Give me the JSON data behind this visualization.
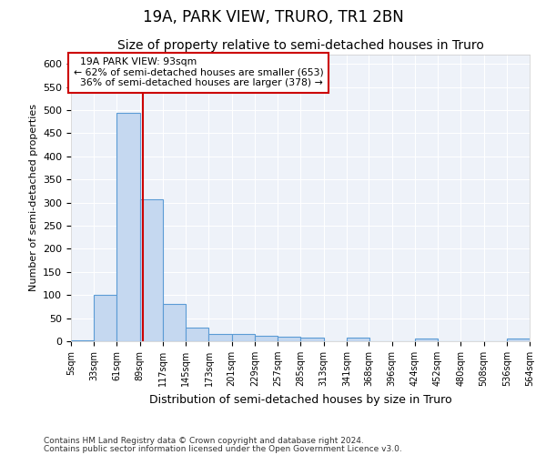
{
  "title": "19A, PARK VIEW, TRURO, TR1 2BN",
  "subtitle": "Size of property relative to semi-detached houses in Truro",
  "xlabel": "Distribution of semi-detached houses by size in Truro",
  "ylabel": "Number of semi-detached properties",
  "footnote1": "Contains HM Land Registry data © Crown copyright and database right 2024.",
  "footnote2": "Contains public sector information licensed under the Open Government Licence v3.0.",
  "property_size": 93,
  "property_label": "19A PARK VIEW: 93sqm",
  "pct_smaller": 62,
  "pct_larger": 36,
  "n_smaller": 653,
  "n_larger": 378,
  "bar_color": "#c5d8f0",
  "bar_edge_color": "#5b9bd5",
  "vline_color": "#cc0000",
  "annotation_box_color": "#cc0000",
  "background_color": "#eef2f9",
  "bin_edges": [
    5,
    33,
    61,
    89,
    117,
    145,
    173,
    201,
    229,
    257,
    285,
    313,
    341,
    368,
    396,
    424,
    452,
    480,
    508,
    536,
    564
  ],
  "bin_counts": [
    2,
    100,
    495,
    307,
    80,
    30,
    15,
    15,
    12,
    10,
    8,
    0,
    8,
    0,
    0,
    6,
    0,
    0,
    0,
    5
  ],
  "ylim": [
    0,
    620
  ],
  "yticks": [
    0,
    50,
    100,
    150,
    200,
    250,
    300,
    350,
    400,
    450,
    500,
    550,
    600
  ],
  "grid_color": "#ffffff",
  "title_fontsize": 12,
  "subtitle_fontsize": 10
}
